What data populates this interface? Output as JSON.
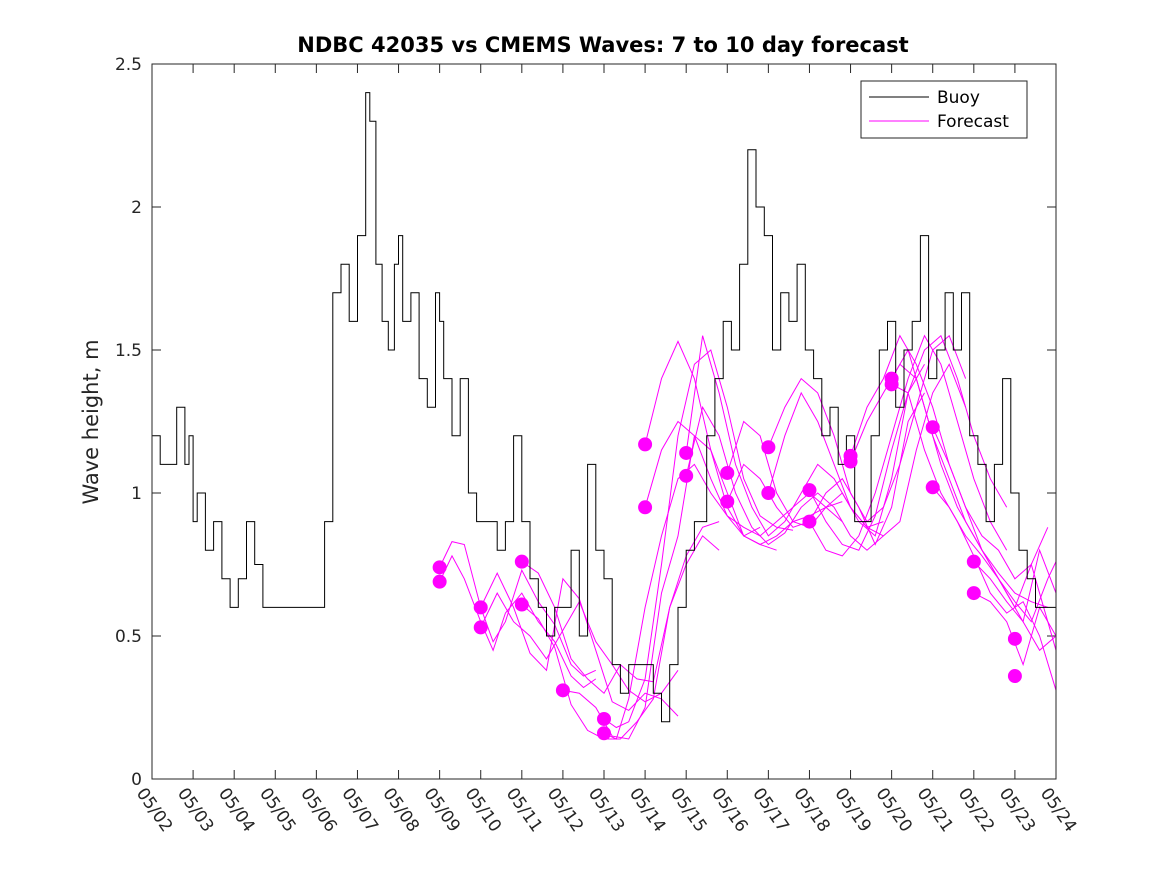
{
  "chart_data": {
    "type": "line",
    "title": "NDBC 42035 vs CMEMS Waves: 7 to 10 day forecast",
    "xlabel": "",
    "ylabel": "Wave height, m",
    "xlim": [
      0,
      22
    ],
    "ylim": [
      0,
      2.5
    ],
    "x_tick_labels": [
      "05/02",
      "05/03",
      "05/04",
      "05/05",
      "05/06",
      "05/07",
      "05/08",
      "05/09",
      "05/10",
      "05/11",
      "05/12",
      "05/13",
      "05/14",
      "05/15",
      "05/16",
      "05/17",
      "05/18",
      "05/19",
      "05/20",
      "05/21",
      "05/22",
      "05/23",
      "05/24"
    ],
    "y_ticks": [
      0,
      0.5,
      1,
      1.5,
      2,
      2.5
    ],
    "y_tick_labels": [
      "0",
      "0.5",
      "1",
      "1.5",
      "2",
      "2.5"
    ],
    "legend": {
      "position": "top-right",
      "entries": [
        "Buoy",
        "Forecast"
      ]
    },
    "colors": {
      "buoy": "#000000",
      "forecast": "#ff00ff"
    },
    "series": [
      {
        "name": "Buoy",
        "x": [
          0,
          0.2,
          0.4,
          0.6,
          0.8,
          0.9,
          1.0,
          1.1,
          1.3,
          1.5,
          1.7,
          1.9,
          2.1,
          2.3,
          2.5,
          2.7,
          2.9,
          3.0,
          3.2,
          3.5,
          3.8,
          4.0,
          4.2,
          4.4,
          4.6,
          4.8,
          5.0,
          5.2,
          5.3,
          5.45,
          5.6,
          5.75,
          5.9,
          6.0,
          6.1,
          6.3,
          6.5,
          6.7,
          6.9,
          7.0,
          7.1,
          7.3,
          7.5,
          7.7,
          7.9,
          8.0,
          8.2,
          8.4,
          8.6,
          8.8,
          9.0,
          9.2,
          9.4,
          9.6,
          9.8,
          10.0,
          10.2,
          10.4,
          10.6,
          10.8,
          11.0,
          11.2,
          11.4,
          11.6,
          11.8,
          12.0,
          12.2,
          12.4,
          12.6,
          12.8,
          13.0,
          13.2,
          13.4,
          13.5,
          13.7,
          13.9,
          14.1,
          14.3,
          14.5,
          14.7,
          14.9,
          15.1,
          15.3,
          15.5,
          15.7,
          15.9,
          16.1,
          16.3,
          16.5,
          16.7,
          16.9,
          17.1,
          17.3,
          17.5,
          17.7,
          17.9,
          18.1,
          18.3,
          18.5,
          18.7,
          18.9,
          19.1,
          19.3,
          19.5,
          19.7,
          19.9,
          20.1,
          20.3,
          20.5,
          20.7,
          20.9,
          21.1,
          21.3,
          21.5,
          21.7,
          21.9,
          22.0
        ],
        "values": [
          1.2,
          1.1,
          1.1,
          1.3,
          1.1,
          1.2,
          0.9,
          1.0,
          0.8,
          0.9,
          0.7,
          0.6,
          0.7,
          0.9,
          0.75,
          0.6,
          0.6,
          0.6,
          0.6,
          0.6,
          0.6,
          0.6,
          0.9,
          1.7,
          1.8,
          1.6,
          1.9,
          2.4,
          2.3,
          1.8,
          1.6,
          1.5,
          1.8,
          1.9,
          1.6,
          1.7,
          1.4,
          1.3,
          1.7,
          1.6,
          1.4,
          1.2,
          1.4,
          1.0,
          0.9,
          0.9,
          0.9,
          0.8,
          0.9,
          1.2,
          0.9,
          0.7,
          0.6,
          0.5,
          0.6,
          0.6,
          0.8,
          0.5,
          1.1,
          0.8,
          0.7,
          0.4,
          0.3,
          0.4,
          0.4,
          0.4,
          0.3,
          0.2,
          0.4,
          0.6,
          0.8,
          0.9,
          0.9,
          1.2,
          1.4,
          1.6,
          1.5,
          1.8,
          2.2,
          2.0,
          1.9,
          1.5,
          1.7,
          1.6,
          1.8,
          1.5,
          1.4,
          1.2,
          1.3,
          1.1,
          1.2,
          0.9,
          0.9,
          1.2,
          1.5,
          1.6,
          1.3,
          1.5,
          1.6,
          1.9,
          1.4,
          1.5,
          1.7,
          1.5,
          1.7,
          1.2,
          1.1,
          0.9,
          1.1,
          1.4,
          1.0,
          0.8,
          0.7,
          0.6,
          0.6,
          0.6,
          0.5
        ]
      }
    ],
    "forecast_runs": [
      {
        "x": [
          7.0,
          7.3,
          7.6,
          8.0,
          8.3,
          8.6,
          9.0,
          9.4,
          9.8,
          10.2,
          10.5,
          10.8
        ],
        "values": [
          0.74,
          0.83,
          0.82,
          0.6,
          0.48,
          0.55,
          0.73,
          0.62,
          0.54,
          0.4,
          0.36,
          0.38
        ]
      },
      {
        "x": [
          7.0,
          7.3,
          7.6,
          8.0,
          8.3,
          8.6,
          9.0,
          9.4,
          9.8,
          10.2,
          10.5,
          10.8
        ],
        "values": [
          0.69,
          0.78,
          0.7,
          0.55,
          0.45,
          0.58,
          0.65,
          0.55,
          0.48,
          0.36,
          0.32,
          0.35
        ]
      },
      {
        "x": [
          8.0,
          8.4,
          8.8,
          9.2,
          9.6,
          10.0,
          10.4,
          10.8,
          11.2,
          11.6,
          12.0,
          12.4,
          12.8
        ],
        "values": [
          0.6,
          0.72,
          0.6,
          0.44,
          0.38,
          0.7,
          0.63,
          0.45,
          0.27,
          0.24,
          0.3,
          0.28,
          0.22
        ]
      },
      {
        "x": [
          8.0,
          8.4,
          8.8,
          9.2,
          9.6,
          10.0,
          10.4,
          10.8,
          11.2,
          11.6,
          12.0,
          12.4,
          12.8
        ],
        "values": [
          0.53,
          0.65,
          0.55,
          0.5,
          0.42,
          0.52,
          0.62,
          0.48,
          0.4,
          0.31,
          0.27,
          0.3,
          0.38
        ]
      },
      {
        "x": [
          9.0,
          9.4,
          9.8,
          10.2,
          10.6,
          11.0,
          11.4,
          11.8,
          12.2,
          12.6,
          13.0,
          13.4,
          13.8
        ],
        "values": [
          0.76,
          0.72,
          0.6,
          0.42,
          0.35,
          0.3,
          0.4,
          0.35,
          0.34,
          0.6,
          0.75,
          0.85,
          0.8
        ]
      },
      {
        "x": [
          9.0,
          9.4,
          9.8,
          10.2,
          10.6,
          11.0,
          11.4,
          11.8,
          12.2,
          12.6,
          13.0,
          13.4,
          13.8
        ],
        "values": [
          0.61,
          0.56,
          0.46,
          0.26,
          0.17,
          0.14,
          0.14,
          0.2,
          0.28,
          0.6,
          0.78,
          0.88,
          0.9
        ]
      },
      {
        "x": [
          10.0,
          10.4,
          10.8,
          11.2,
          11.6,
          12.0,
          12.4,
          12.8,
          13.2,
          13.6,
          14.0,
          14.4,
          14.8
        ],
        "values": [
          0.31,
          0.3,
          0.25,
          0.15,
          0.14,
          0.25,
          0.65,
          0.85,
          1.2,
          1.15,
          1.0,
          0.85,
          0.88
        ]
      },
      {
        "x": [
          11.0,
          11.3,
          11.6,
          12.0,
          12.4,
          12.8,
          13.2,
          13.6,
          14.0,
          14.4,
          14.8,
          15.2,
          15.6
        ],
        "values": [
          0.21,
          0.18,
          0.2,
          0.35,
          0.75,
          1.2,
          1.45,
          1.5,
          1.3,
          1.05,
          0.92,
          0.88,
          0.87
        ]
      },
      {
        "x": [
          11.0,
          11.3,
          11.6,
          12.0,
          12.4,
          12.8,
          13.2,
          13.6,
          14.0,
          14.4,
          14.8,
          15.2
        ],
        "values": [
          0.16,
          0.14,
          0.28,
          0.6,
          0.85,
          1.05,
          1.1,
          1.0,
          0.92,
          0.85,
          0.82,
          0.8
        ]
      },
      {
        "x": [
          12.0,
          12.4,
          12.8,
          13.2,
          13.6,
          14.0,
          14.4,
          14.8,
          15.2,
          15.6,
          16.0,
          16.4,
          16.8
        ],
        "values": [
          1.17,
          1.4,
          1.53,
          1.4,
          1.15,
          0.95,
          0.85,
          0.82,
          0.85,
          0.9,
          0.92,
          0.95,
          0.97
        ]
      },
      {
        "x": [
          12.0,
          12.4,
          12.8,
          13.2,
          13.6,
          14.0,
          14.4,
          14.8,
          15.2,
          15.6,
          16.0,
          16.4,
          16.8
        ],
        "values": [
          0.95,
          1.15,
          1.25,
          1.2,
          1.05,
          0.92,
          0.88,
          0.85,
          0.9,
          0.95,
          1.0,
          0.95,
          0.9
        ]
      },
      {
        "x": [
          13.0,
          13.4,
          13.8,
          14.2,
          14.6,
          15.0,
          15.4,
          15.8,
          16.2,
          16.6,
          17.0,
          17.4,
          17.8
        ],
        "values": [
          1.14,
          1.55,
          1.35,
          1.1,
          0.95,
          0.85,
          0.9,
          1.0,
          1.1,
          1.05,
          0.95,
          0.88,
          0.9
        ]
      },
      {
        "x": [
          13.0,
          13.4,
          13.8,
          14.2,
          14.6,
          15.0,
          15.4,
          15.8,
          16.2,
          16.6,
          17.0,
          17.4,
          17.8
        ],
        "values": [
          1.06,
          1.3,
          1.2,
          1.0,
          0.88,
          0.82,
          0.86,
          0.95,
          1.0,
          0.95,
          0.85,
          0.8,
          0.85
        ]
      },
      {
        "x": [
          14.0,
          14.4,
          14.8,
          15.2,
          15.6,
          16.0,
          16.4,
          16.8,
          17.2,
          17.6,
          18.0,
          18.4,
          18.8
        ],
        "values": [
          1.07,
          1.25,
          1.2,
          1.0,
          0.9,
          0.88,
          0.95,
          1.0,
          0.9,
          0.85,
          1.05,
          1.35,
          1.45
        ]
      },
      {
        "x": [
          14.0,
          14.4,
          14.8,
          15.2,
          15.6,
          16.0,
          16.4,
          16.8,
          17.2,
          17.6,
          18.0,
          18.4,
          18.8
        ],
        "values": [
          0.97,
          1.1,
          1.05,
          0.95,
          0.88,
          0.9,
          1.0,
          1.05,
          0.95,
          0.82,
          0.95,
          1.25,
          1.35
        ]
      },
      {
        "x": [
          15.0,
          15.4,
          15.8,
          16.2,
          16.6,
          17.0,
          17.4,
          17.8,
          18.2,
          18.6,
          19.0,
          19.4,
          19.8
        ],
        "values": [
          1.16,
          1.3,
          1.4,
          1.35,
          1.2,
          1.0,
          0.9,
          0.95,
          1.1,
          1.3,
          1.5,
          1.55,
          1.4
        ]
      },
      {
        "x": [
          15.0,
          15.4,
          15.8,
          16.2,
          16.6,
          17.0,
          17.4,
          17.8,
          18.2,
          18.6,
          19.0,
          19.4,
          19.8
        ],
        "values": [
          1.0,
          1.2,
          1.35,
          1.25,
          1.1,
          0.95,
          0.88,
          0.85,
          0.9,
          1.15,
          1.35,
          1.45,
          1.3
        ]
      },
      {
        "x": [
          16.0,
          16.4,
          16.8,
          17.2,
          17.6,
          18.0,
          18.4,
          18.8,
          19.2,
          19.6,
          20.0,
          20.4,
          20.8
        ],
        "values": [
          1.01,
          0.9,
          0.82,
          0.8,
          0.92,
          1.15,
          1.35,
          1.5,
          1.55,
          1.4,
          1.2,
          1.05,
          0.95
        ]
      },
      {
        "x": [
          16.0,
          16.4,
          16.8,
          17.2,
          17.6,
          18.0,
          18.4,
          18.8,
          19.2,
          19.6,
          20.0,
          20.4,
          20.8
        ],
        "values": [
          0.9,
          0.8,
          0.78,
          0.85,
          1.0,
          1.2,
          1.4,
          1.55,
          1.45,
          1.25,
          1.05,
          0.9,
          0.8
        ]
      },
      {
        "x": [
          17.0,
          17.4,
          17.8,
          18.2,
          18.6,
          19.0,
          19.4,
          19.8,
          20.2,
          20.6,
          21.0,
          21.4,
          21.8
        ],
        "values": [
          1.13,
          1.3,
          1.4,
          1.55,
          1.45,
          1.3,
          1.1,
          0.95,
          0.85,
          0.8,
          0.7,
          0.75,
          0.88
        ]
      },
      {
        "x": [
          17.0,
          17.4,
          17.8,
          18.2,
          18.6,
          19.0,
          19.4,
          19.8,
          20.2,
          20.6,
          21.0,
          21.4,
          21.8
        ],
        "values": [
          1.11,
          1.25,
          1.35,
          1.45,
          1.4,
          1.2,
          1.05,
          0.9,
          0.8,
          0.72,
          0.65,
          0.62,
          0.6
        ]
      },
      {
        "x": [
          18.0,
          18.4,
          18.8,
          19.2,
          19.6,
          20.0,
          20.4,
          20.8,
          21.2,
          21.6,
          22.0
        ],
        "values": [
          1.4,
          1.5,
          1.3,
          1.1,
          0.95,
          0.85,
          0.75,
          0.65,
          0.55,
          0.45,
          0.5
        ]
      },
      {
        "x": [
          18.0,
          18.4,
          18.8,
          19.2,
          19.6,
          20.0,
          20.4,
          20.8,
          21.2,
          21.6,
          22.0
        ],
        "values": [
          1.38,
          1.35,
          1.15,
          1.0,
          0.9,
          0.78,
          0.65,
          0.58,
          0.62,
          0.5,
          0.31
        ]
      },
      {
        "x": [
          19.0,
          19.4,
          19.8,
          20.2,
          20.6,
          21.0,
          21.4,
          21.8,
          22.0
        ],
        "values": [
          1.23,
          1.1,
          0.95,
          0.8,
          0.7,
          0.6,
          0.75,
          0.55,
          0.45
        ]
      },
      {
        "x": [
          19.0,
          19.4,
          19.8,
          20.2,
          20.6,
          21.0,
          21.4,
          21.8,
          22.0
        ],
        "values": [
          1.02,
          0.95,
          0.85,
          0.78,
          0.7,
          0.62,
          0.55,
          0.7,
          0.76
        ]
      },
      {
        "x": [
          20.0,
          20.4,
          20.8,
          21.2,
          21.6,
          22.0
        ],
        "values": [
          0.76,
          0.7,
          0.62,
          0.55,
          0.8,
          0.65
        ]
      },
      {
        "x": [
          20.0,
          20.4,
          20.8,
          21.2,
          21.6,
          22.0
        ],
        "values": [
          0.65,
          0.62,
          0.55,
          0.4,
          0.6,
          0.5
        ]
      }
    ],
    "forecast_start_points": {
      "x": [
        7.0,
        7.0,
        8.0,
        8.0,
        9.0,
        9.0,
        10.0,
        11.0,
        11.0,
        12.0,
        12.0,
        13.0,
        13.0,
        14.0,
        14.0,
        15.0,
        15.0,
        16.0,
        16.0,
        17.0,
        17.0,
        18.0,
        18.0,
        19.0,
        19.0,
        20.0,
        20.0,
        21.0,
        21.0
      ],
      "values": [
        0.74,
        0.69,
        0.6,
        0.53,
        0.76,
        0.61,
        0.31,
        0.21,
        0.16,
        1.17,
        0.95,
        1.14,
        1.06,
        1.07,
        0.97,
        1.16,
        1.0,
        1.01,
        0.9,
        1.13,
        1.11,
        1.4,
        1.38,
        1.23,
        1.02,
        0.76,
        0.65,
        0.49,
        0.36
      ]
    }
  }
}
